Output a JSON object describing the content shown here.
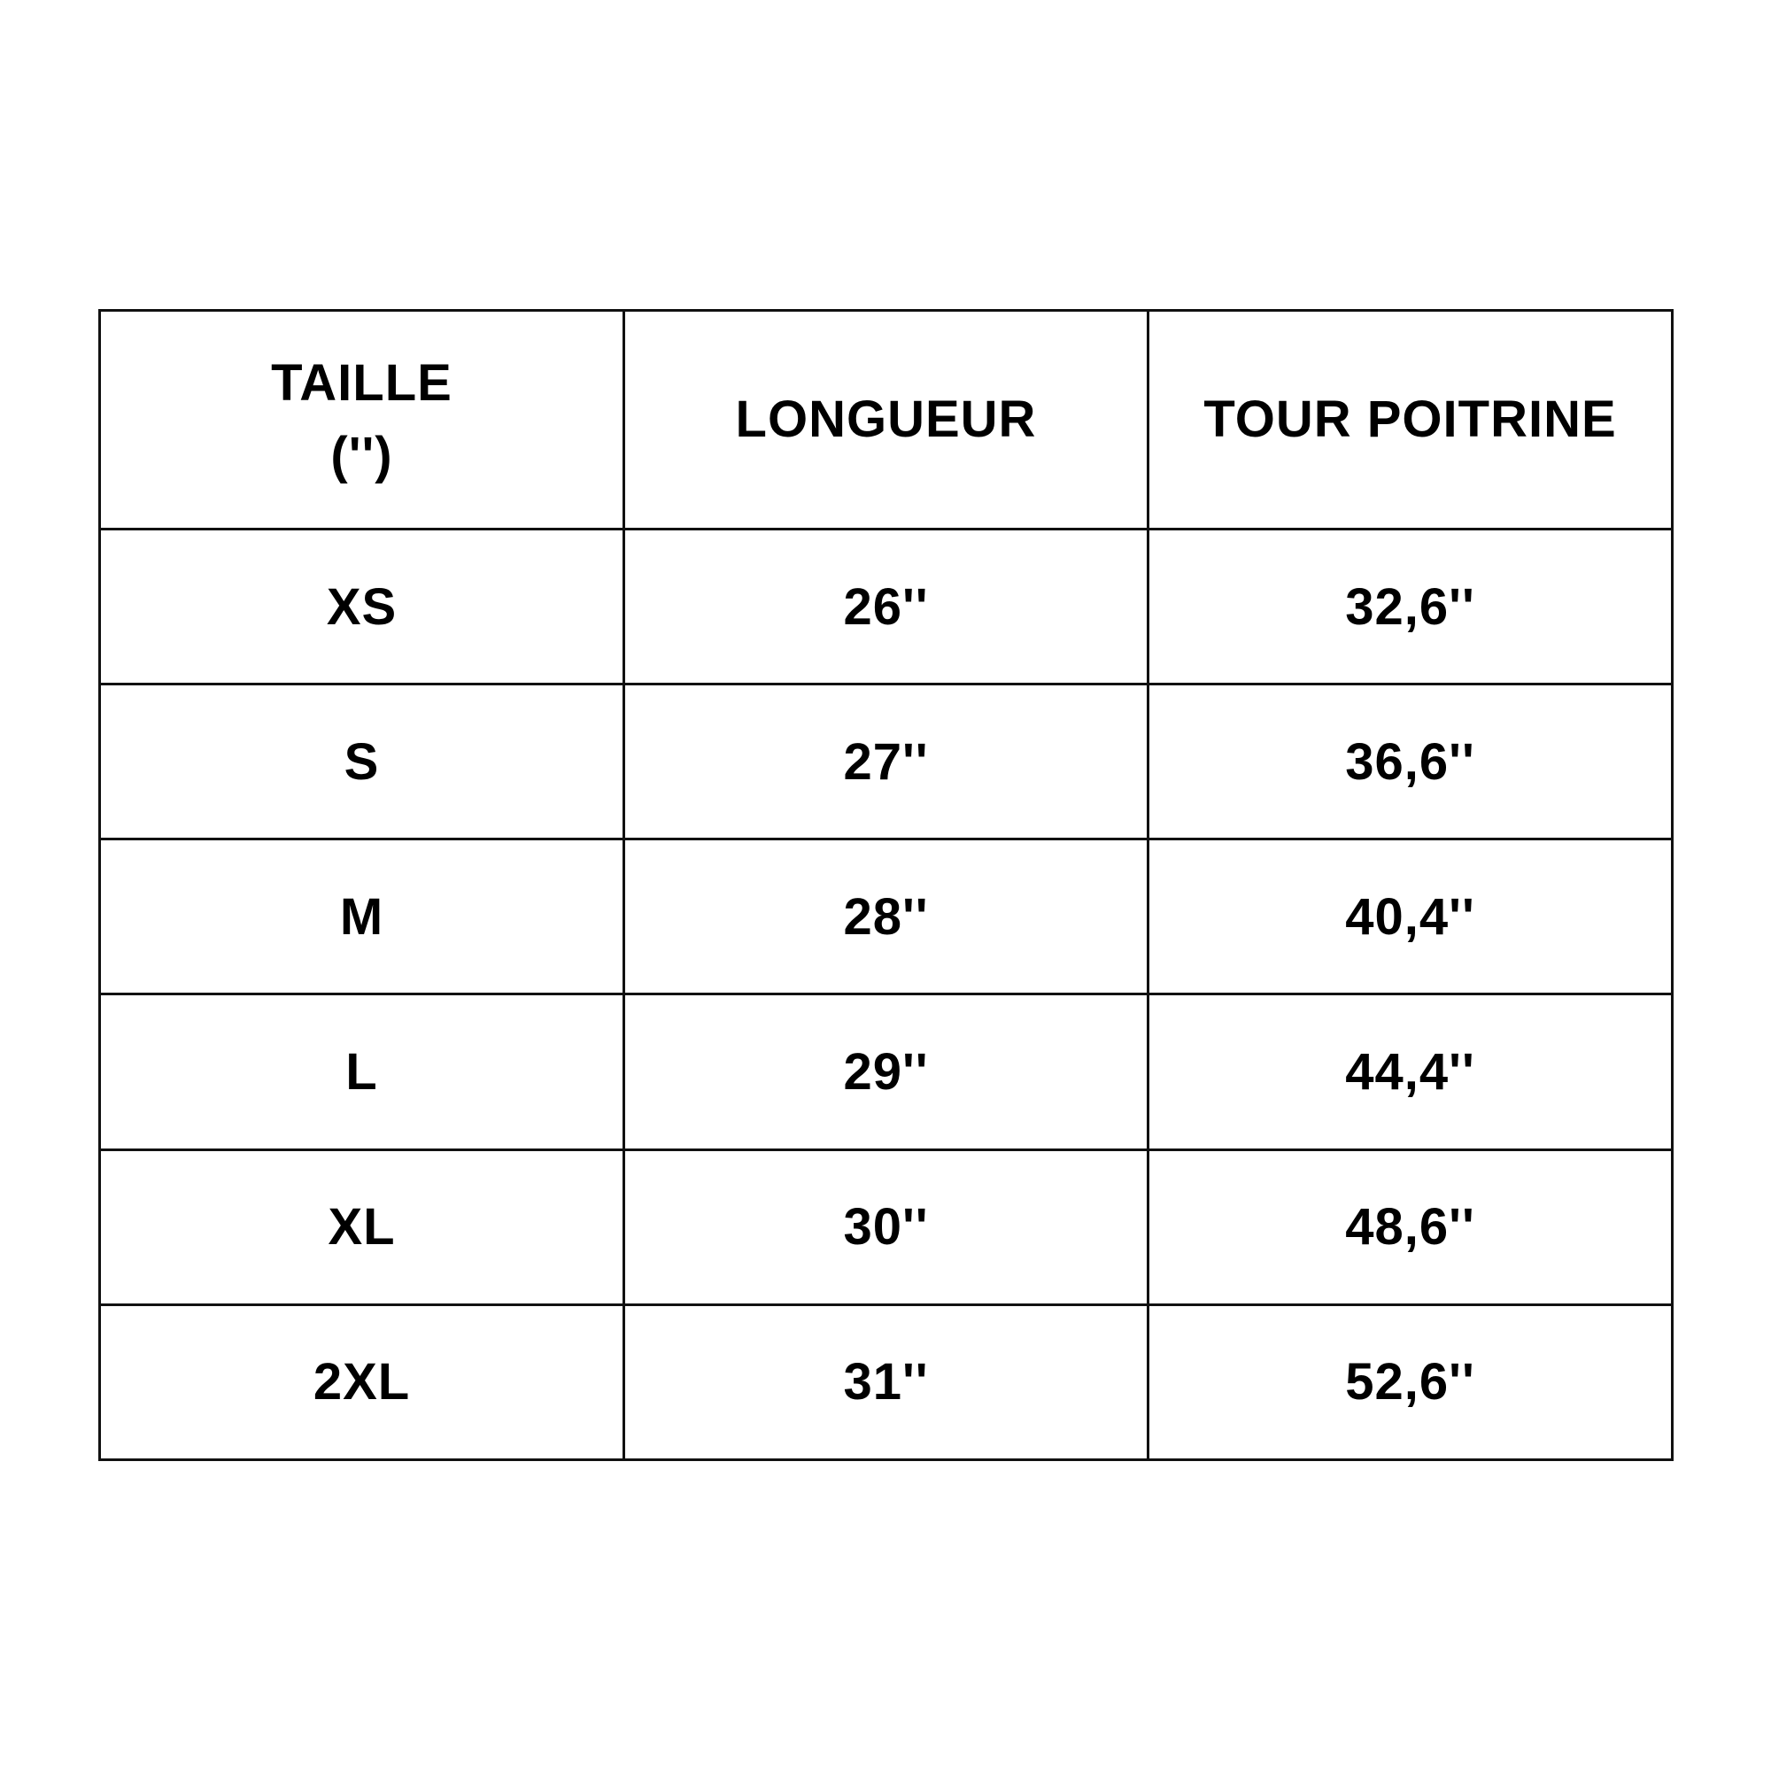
{
  "table": {
    "headers": [
      {
        "line1": "TAILLE",
        "line2": "('')"
      },
      {
        "line1": "LONGUEUR"
      },
      {
        "line1": "TOUR POITRINE"
      }
    ],
    "rows": [
      [
        "XS",
        "26''",
        "32,6''"
      ],
      [
        "S",
        "27''",
        "36,6''"
      ],
      [
        "M",
        "28''",
        "40,4''"
      ],
      [
        "L",
        "29''",
        "44,4''"
      ],
      [
        "XL",
        "30''",
        "48,6''"
      ],
      [
        "2XL",
        "31''",
        "52,6''"
      ]
    ]
  }
}
